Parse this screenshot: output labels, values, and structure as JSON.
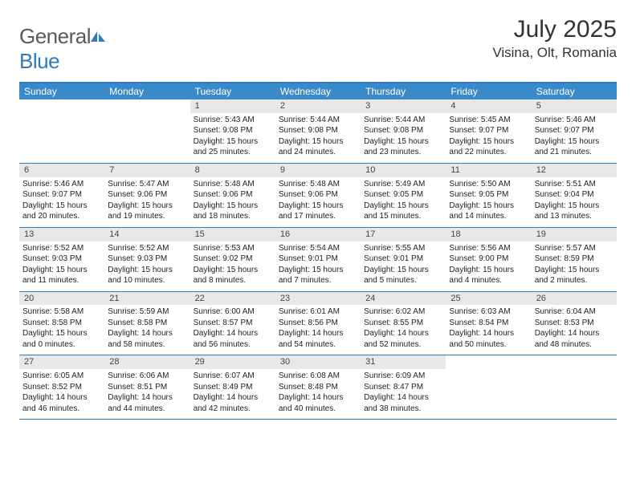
{
  "brand": {
    "part1": "General",
    "part2": "Blue"
  },
  "title": "July 2025",
  "location": "Visina, Olt, Romania",
  "colors": {
    "header_bar": "#3a8ac9",
    "border": "#2f7bbf",
    "daynum_bg": "#e8e8e8",
    "text": "#222222",
    "logo_gray": "#5a5a5a"
  },
  "weekdays": [
    "Sunday",
    "Monday",
    "Tuesday",
    "Wednesday",
    "Thursday",
    "Friday",
    "Saturday"
  ],
  "first_day_index": 2,
  "days": [
    {
      "n": 1,
      "sunrise": "5:43 AM",
      "sunset": "9:08 PM",
      "daylight": "15 hours and 25 minutes."
    },
    {
      "n": 2,
      "sunrise": "5:44 AM",
      "sunset": "9:08 PM",
      "daylight": "15 hours and 24 minutes."
    },
    {
      "n": 3,
      "sunrise": "5:44 AM",
      "sunset": "9:08 PM",
      "daylight": "15 hours and 23 minutes."
    },
    {
      "n": 4,
      "sunrise": "5:45 AM",
      "sunset": "9:07 PM",
      "daylight": "15 hours and 22 minutes."
    },
    {
      "n": 5,
      "sunrise": "5:46 AM",
      "sunset": "9:07 PM",
      "daylight": "15 hours and 21 minutes."
    },
    {
      "n": 6,
      "sunrise": "5:46 AM",
      "sunset": "9:07 PM",
      "daylight": "15 hours and 20 minutes."
    },
    {
      "n": 7,
      "sunrise": "5:47 AM",
      "sunset": "9:06 PM",
      "daylight": "15 hours and 19 minutes."
    },
    {
      "n": 8,
      "sunrise": "5:48 AM",
      "sunset": "9:06 PM",
      "daylight": "15 hours and 18 minutes."
    },
    {
      "n": 9,
      "sunrise": "5:48 AM",
      "sunset": "9:06 PM",
      "daylight": "15 hours and 17 minutes."
    },
    {
      "n": 10,
      "sunrise": "5:49 AM",
      "sunset": "9:05 PM",
      "daylight": "15 hours and 15 minutes."
    },
    {
      "n": 11,
      "sunrise": "5:50 AM",
      "sunset": "9:05 PM",
      "daylight": "15 hours and 14 minutes."
    },
    {
      "n": 12,
      "sunrise": "5:51 AM",
      "sunset": "9:04 PM",
      "daylight": "15 hours and 13 minutes."
    },
    {
      "n": 13,
      "sunrise": "5:52 AM",
      "sunset": "9:03 PM",
      "daylight": "15 hours and 11 minutes."
    },
    {
      "n": 14,
      "sunrise": "5:52 AM",
      "sunset": "9:03 PM",
      "daylight": "15 hours and 10 minutes."
    },
    {
      "n": 15,
      "sunrise": "5:53 AM",
      "sunset": "9:02 PM",
      "daylight": "15 hours and 8 minutes."
    },
    {
      "n": 16,
      "sunrise": "5:54 AM",
      "sunset": "9:01 PM",
      "daylight": "15 hours and 7 minutes."
    },
    {
      "n": 17,
      "sunrise": "5:55 AM",
      "sunset": "9:01 PM",
      "daylight": "15 hours and 5 minutes."
    },
    {
      "n": 18,
      "sunrise": "5:56 AM",
      "sunset": "9:00 PM",
      "daylight": "15 hours and 4 minutes."
    },
    {
      "n": 19,
      "sunrise": "5:57 AM",
      "sunset": "8:59 PM",
      "daylight": "15 hours and 2 minutes."
    },
    {
      "n": 20,
      "sunrise": "5:58 AM",
      "sunset": "8:58 PM",
      "daylight": "15 hours and 0 minutes."
    },
    {
      "n": 21,
      "sunrise": "5:59 AM",
      "sunset": "8:58 PM",
      "daylight": "14 hours and 58 minutes."
    },
    {
      "n": 22,
      "sunrise": "6:00 AM",
      "sunset": "8:57 PM",
      "daylight": "14 hours and 56 minutes."
    },
    {
      "n": 23,
      "sunrise": "6:01 AM",
      "sunset": "8:56 PM",
      "daylight": "14 hours and 54 minutes."
    },
    {
      "n": 24,
      "sunrise": "6:02 AM",
      "sunset": "8:55 PM",
      "daylight": "14 hours and 52 minutes."
    },
    {
      "n": 25,
      "sunrise": "6:03 AM",
      "sunset": "8:54 PM",
      "daylight": "14 hours and 50 minutes."
    },
    {
      "n": 26,
      "sunrise": "6:04 AM",
      "sunset": "8:53 PM",
      "daylight": "14 hours and 48 minutes."
    },
    {
      "n": 27,
      "sunrise": "6:05 AM",
      "sunset": "8:52 PM",
      "daylight": "14 hours and 46 minutes."
    },
    {
      "n": 28,
      "sunrise": "6:06 AM",
      "sunset": "8:51 PM",
      "daylight": "14 hours and 44 minutes."
    },
    {
      "n": 29,
      "sunrise": "6:07 AM",
      "sunset": "8:49 PM",
      "daylight": "14 hours and 42 minutes."
    },
    {
      "n": 30,
      "sunrise": "6:08 AM",
      "sunset": "8:48 PM",
      "daylight": "14 hours and 40 minutes."
    },
    {
      "n": 31,
      "sunrise": "6:09 AM",
      "sunset": "8:47 PM",
      "daylight": "14 hours and 38 minutes."
    }
  ],
  "labels": {
    "sunrise": "Sunrise:",
    "sunset": "Sunset:",
    "daylight": "Daylight:"
  }
}
